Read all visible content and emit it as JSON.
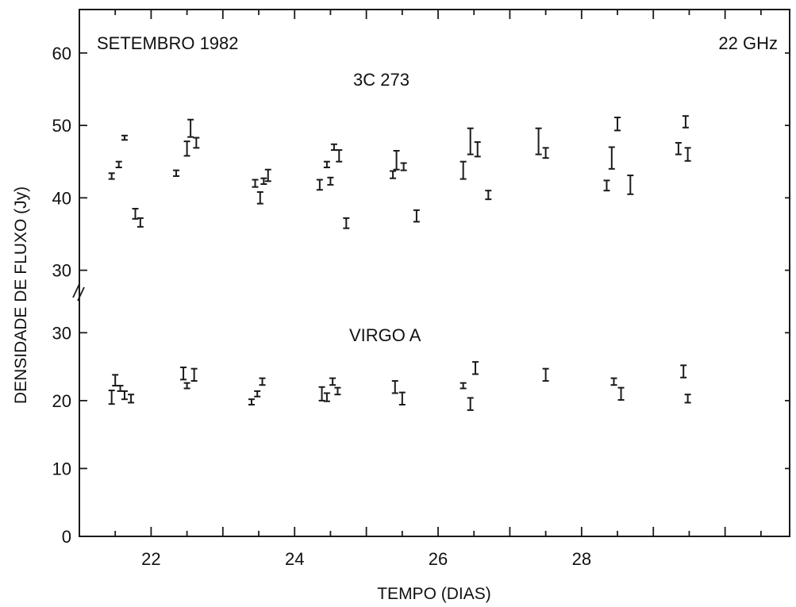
{
  "chart_data": {
    "type": "scatter",
    "xlabel": "TEMPO (DIAS)",
    "ylabel": "DENSIDADE DE FLUXO (Jy)",
    "x_ticks": [
      "22",
      "24",
      "26",
      "28"
    ],
    "xlim": [
      21.0,
      30.9
    ],
    "grid": false,
    "panels": [
      {
        "label": "3C 273",
        "ylim": [
          27,
          66
        ],
        "y_ticks": [
          "30",
          "40",
          "50",
          "60"
        ],
        "points": [
          {
            "x": 21.45,
            "y": 43.0,
            "err": 0.4
          },
          {
            "x": 21.55,
            "y": 44.6,
            "err": 0.4
          },
          {
            "x": 21.63,
            "y": 48.3,
            "err": 0.3
          },
          {
            "x": 21.78,
            "y": 37.8,
            "err": 0.7
          },
          {
            "x": 21.85,
            "y": 36.6,
            "err": 0.6
          },
          {
            "x": 22.35,
            "y": 43.4,
            "err": 0.4
          },
          {
            "x": 22.5,
            "y": 46.8,
            "err": 1.0
          },
          {
            "x": 22.55,
            "y": 49.6,
            "err": 1.2
          },
          {
            "x": 22.63,
            "y": 47.6,
            "err": 0.7
          },
          {
            "x": 23.45,
            "y": 42.0,
            "err": 0.5
          },
          {
            "x": 23.52,
            "y": 40.0,
            "err": 0.8
          },
          {
            "x": 23.57,
            "y": 42.3,
            "err": 0.4
          },
          {
            "x": 23.63,
            "y": 43.1,
            "err": 0.8
          },
          {
            "x": 24.35,
            "y": 41.8,
            "err": 0.7
          },
          {
            "x": 24.45,
            "y": 44.6,
            "err": 0.4
          },
          {
            "x": 24.5,
            "y": 42.3,
            "err": 0.5
          },
          {
            "x": 24.55,
            "y": 47.0,
            "err": 0.4
          },
          {
            "x": 24.62,
            "y": 45.8,
            "err": 0.8
          },
          {
            "x": 24.72,
            "y": 36.5,
            "err": 0.7
          },
          {
            "x": 25.37,
            "y": 43.2,
            "err": 0.5
          },
          {
            "x": 25.42,
            "y": 45.2,
            "err": 1.3
          },
          {
            "x": 25.52,
            "y": 44.3,
            "err": 0.5
          },
          {
            "x": 25.7,
            "y": 37.5,
            "err": 0.8
          },
          {
            "x": 26.35,
            "y": 43.8,
            "err": 1.2
          },
          {
            "x": 26.45,
            "y": 47.8,
            "err": 1.8
          },
          {
            "x": 26.55,
            "y": 46.7,
            "err": 1.0
          },
          {
            "x": 26.7,
            "y": 40.4,
            "err": 0.6
          },
          {
            "x": 27.4,
            "y": 47.8,
            "err": 1.8
          },
          {
            "x": 27.5,
            "y": 46.2,
            "err": 0.7
          },
          {
            "x": 28.35,
            "y": 41.7,
            "err": 0.7
          },
          {
            "x": 28.42,
            "y": 45.5,
            "err": 1.5
          },
          {
            "x": 28.5,
            "y": 50.2,
            "err": 0.9
          },
          {
            "x": 28.68,
            "y": 41.8,
            "err": 1.3
          },
          {
            "x": 29.35,
            "y": 46.8,
            "err": 0.8
          },
          {
            "x": 29.45,
            "y": 50.5,
            "err": 0.8
          },
          {
            "x": 29.48,
            "y": 46.0,
            "err": 0.9
          }
        ]
      },
      {
        "label": "VIRGO A",
        "ylim": [
          0,
          36
        ],
        "y_ticks": [
          "0",
          "10",
          "20",
          "30"
        ],
        "points": [
          {
            "x": 21.45,
            "y": 20.5,
            "err": 1.0
          },
          {
            "x": 21.5,
            "y": 23.0,
            "err": 0.8
          },
          {
            "x": 21.57,
            "y": 21.8,
            "err": 0.4
          },
          {
            "x": 21.63,
            "y": 20.8,
            "err": 0.6
          },
          {
            "x": 21.72,
            "y": 20.3,
            "err": 0.6
          },
          {
            "x": 22.45,
            "y": 24.0,
            "err": 0.9
          },
          {
            "x": 22.5,
            "y": 22.2,
            "err": 0.4
          },
          {
            "x": 22.6,
            "y": 23.8,
            "err": 0.9
          },
          {
            "x": 23.4,
            "y": 19.8,
            "err": 0.4
          },
          {
            "x": 23.48,
            "y": 21.0,
            "err": 0.4
          },
          {
            "x": 23.55,
            "y": 22.8,
            "err": 0.5
          },
          {
            "x": 24.38,
            "y": 21.0,
            "err": 1.0
          },
          {
            "x": 24.45,
            "y": 20.5,
            "err": 0.6
          },
          {
            "x": 24.53,
            "y": 22.8,
            "err": 0.5
          },
          {
            "x": 24.6,
            "y": 21.4,
            "err": 0.5
          },
          {
            "x": 25.4,
            "y": 22.0,
            "err": 0.9
          },
          {
            "x": 25.5,
            "y": 20.3,
            "err": 0.9
          },
          {
            "x": 26.35,
            "y": 22.2,
            "err": 0.4
          },
          {
            "x": 26.45,
            "y": 19.5,
            "err": 0.9
          },
          {
            "x": 26.52,
            "y": 24.8,
            "err": 0.9
          },
          {
            "x": 27.5,
            "y": 23.8,
            "err": 0.9
          },
          {
            "x": 28.45,
            "y": 22.8,
            "err": 0.5
          },
          {
            "x": 28.55,
            "y": 21.0,
            "err": 0.9
          },
          {
            "x": 29.42,
            "y": 24.3,
            "err": 0.9
          },
          {
            "x": 29.48,
            "y": 20.3,
            "err": 0.6
          }
        ]
      }
    ],
    "annotations": {
      "top_left": "SETEMBRO 1982",
      "top_right": "22 GHz"
    }
  }
}
